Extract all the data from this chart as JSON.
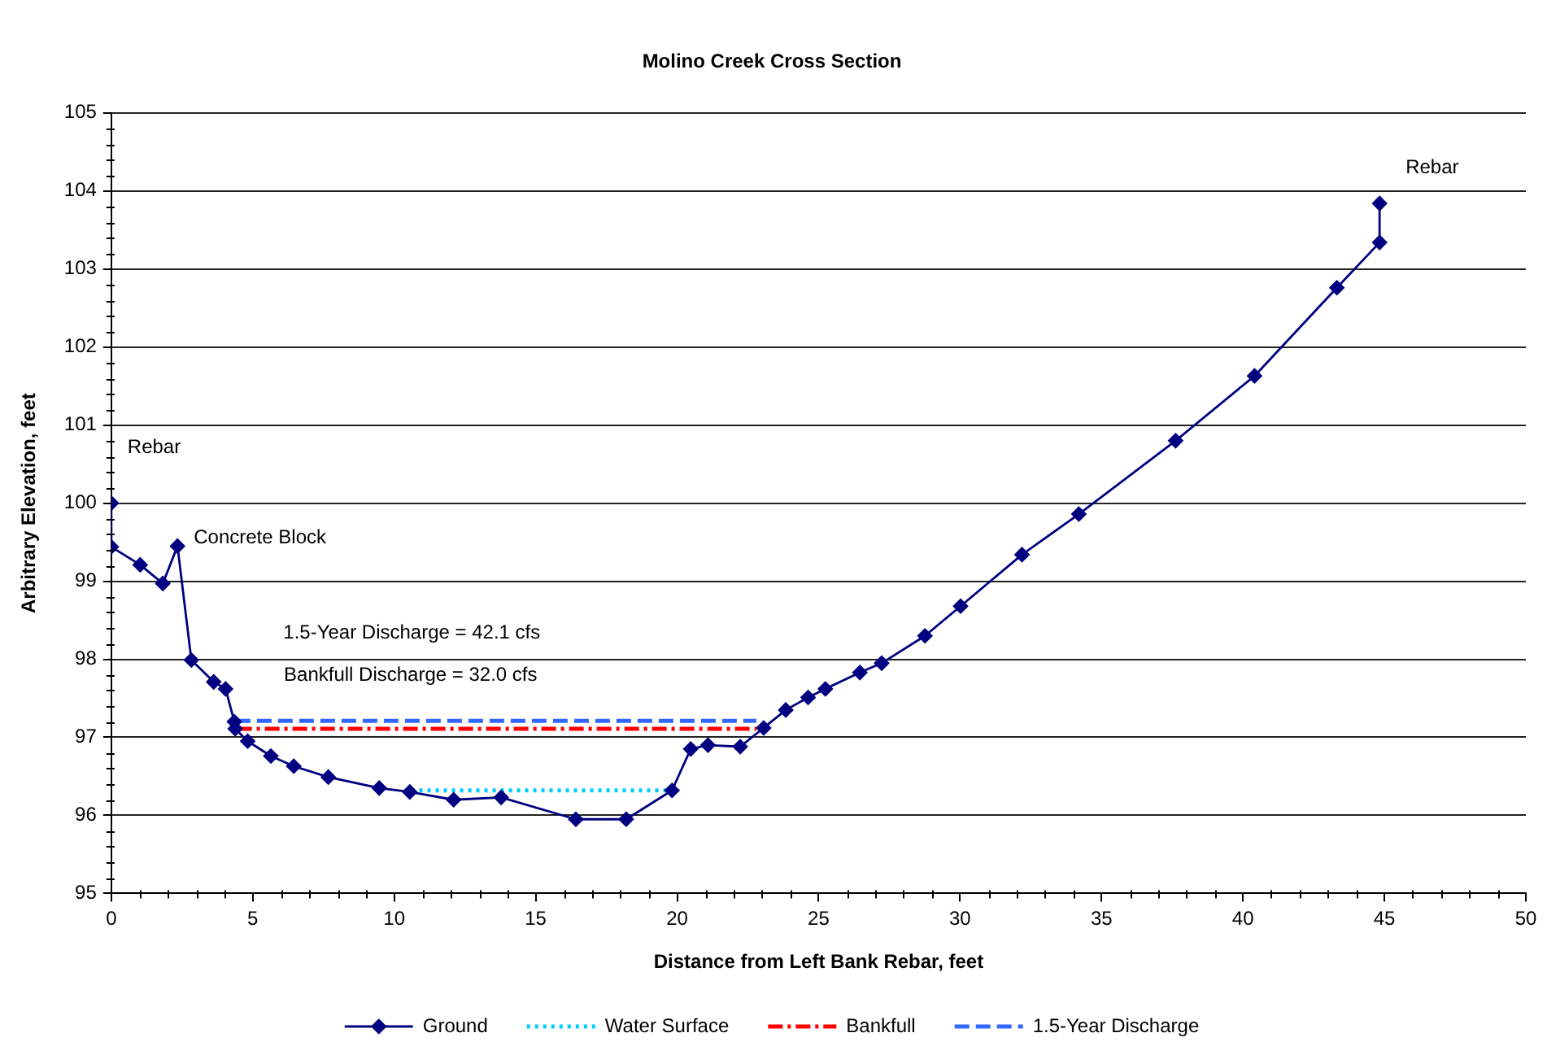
{
  "chart_data": {
    "type": "line",
    "title": "Molino Creek Cross Section",
    "xlabel": "Distance from Left Bank Rebar, feet",
    "ylabel": "Arbitrary Elevation, feet",
    "xlim": [
      0,
      50
    ],
    "xticks": [
      0,
      {
        "value": 1,
        "label": null
      },
      {
        "value": 2,
        "label": null
      },
      {
        "value": 3,
        "label": null
      },
      {
        "value": 4,
        "label": null
      },
      5,
      {
        "value": 6,
        "label": null
      },
      {
        "value": 7,
        "label": null
      },
      {
        "value": 8,
        "label": null
      },
      {
        "value": 9,
        "label": null
      },
      10,
      {
        "value": 11,
        "label": null
      },
      {
        "value": 12,
        "label": null
      },
      {
        "value": 13,
        "label": null
      },
      {
        "value": 14,
        "label": null
      },
      15,
      {
        "value": 16,
        "label": null
      },
      {
        "value": 17,
        "label": null
      },
      {
        "value": 18,
        "label": null
      },
      {
        "value": 19,
        "label": null
      },
      20,
      {
        "value": 21,
        "label": null
      },
      {
        "value": 22,
        "label": null
      },
      {
        "value": 23,
        "label": null
      },
      {
        "value": 24,
        "label": null
      },
      25,
      {
        "value": 26,
        "label": null
      },
      {
        "value": 27,
        "label": null
      },
      {
        "value": 28,
        "label": null
      },
      {
        "value": 29,
        "label": null
      },
      30,
      {
        "value": 31,
        "label": null
      },
      {
        "value": 32,
        "label": null
      },
      {
        "value": 33,
        "label": null
      },
      {
        "value": 34,
        "label": null
      },
      35,
      {
        "value": 36,
        "label": null
      },
      {
        "value": 37,
        "label": null
      },
      {
        "value": 38,
        "label": null
      },
      {
        "value": 39,
        "label": null
      },
      40,
      {
        "value": 41,
        "label": null
      },
      {
        "value": 42,
        "label": null
      },
      {
        "value": 43,
        "label": null
      },
      {
        "value": 44,
        "label": null
      },
      45,
      {
        "value": 46,
        "label": null
      },
      {
        "value": 47,
        "label": null
      },
      {
        "value": 48,
        "label": null
      },
      {
        "value": 49,
        "label": null
      },
      50
    ],
    "ylim": [
      95,
      105
    ],
    "yticks": [
      95,
      {
        "value": 95.2,
        "label": null
      },
      {
        "value": 95.4,
        "label": null
      },
      {
        "value": 95.6,
        "label": null
      },
      {
        "value": 95.8,
        "label": null
      },
      96,
      {
        "value": 96.2,
        "label": null
      },
      {
        "value": 96.4,
        "label": null
      },
      {
        "value": 96.6,
        "label": null
      },
      {
        "value": 96.8,
        "label": null
      },
      97,
      {
        "value": 97.2,
        "label": null
      },
      {
        "value": 97.4,
        "label": null
      },
      {
        "value": 97.6,
        "label": null
      },
      {
        "value": 97.8,
        "label": null
      },
      98,
      {
        "value": 98.2,
        "label": null
      },
      {
        "value": 98.4,
        "label": null
      },
      {
        "value": 98.6,
        "label": null
      },
      {
        "value": 98.8,
        "label": null
      },
      99,
      {
        "value": 99.2,
        "label": null
      },
      {
        "value": 99.4,
        "label": null
      },
      {
        "value": 99.6,
        "label": null
      },
      {
        "value": 99.8,
        "label": null
      },
      100,
      {
        "value": 100.2,
        "label": null
      },
      {
        "value": 100.4,
        "label": null
      },
      {
        "value": 100.6,
        "label": null
      },
      {
        "value": 100.8,
        "label": null
      },
      101,
      {
        "value": 101.2,
        "label": null
      },
      {
        "value": 101.4,
        "label": null
      },
      {
        "value": 101.6,
        "label": null
      },
      {
        "value": 101.8,
        "label": null
      },
      102,
      {
        "value": 102.2,
        "label": null
      },
      {
        "value": 102.4,
        "label": null
      },
      {
        "value": 102.6,
        "label": null
      },
      {
        "value": 102.8,
        "label": null
      },
      103,
      {
        "value": 103.2,
        "label": null
      },
      {
        "value": 103.4,
        "label": null
      },
      {
        "value": 103.6,
        "label": null
      },
      {
        "value": 103.8,
        "label": null
      },
      104,
      {
        "value": 104.2,
        "label": null
      },
      {
        "value": 104.4,
        "label": null
      },
      {
        "value": 104.6,
        "label": null
      },
      {
        "value": 104.8,
        "label": null
      },
      105
    ],
    "grid": "y",
    "legend": "bottom",
    "series": [
      {
        "name": "Ground",
        "color": "#000080",
        "marker": "diamond",
        "x": [
          0,
          0,
          1.02,
          1.82,
          2.34,
          2.83,
          3.62,
          4.04,
          4.35,
          4.38,
          4.82,
          5.64,
          6.45,
          7.67,
          9.47,
          10.55,
          12.1,
          13.78,
          16.42,
          18.2,
          19.82,
          20.48,
          21.09,
          22.23,
          23.06,
          23.84,
          24.63,
          25.24,
          26.46,
          27.23,
          28.76,
          30.02,
          32.19,
          34.2,
          37.62,
          40.41,
          43.32,
          44.83,
          44.83
        ],
        "values": [
          100.0,
          99.44,
          99.21,
          98.97,
          99.45,
          97.99,
          97.71,
          97.62,
          97.2,
          97.11,
          96.95,
          96.76,
          96.63,
          96.49,
          96.35,
          96.3,
          96.2,
          96.23,
          95.95,
          95.95,
          96.32,
          96.85,
          96.9,
          96.88,
          97.12,
          97.35,
          97.51,
          97.62,
          97.83,
          97.95,
          98.3,
          98.68,
          99.34,
          99.86,
          100.8,
          101.63,
          102.76,
          103.34,
          103.84
        ]
      },
      {
        "name": "Water Surface",
        "color": "#00ccff",
        "line_style": "dotted",
        "x": [
          10.6,
          19.8
        ],
        "values": [
          96.32,
          96.32
        ]
      },
      {
        "name": "Bankfull",
        "color": "#ff0000",
        "line_style": "dashdot",
        "x": [
          4.45,
          22.8
        ],
        "values": [
          97.11,
          97.11
        ]
      },
      {
        "name": "1.5-Year Discharge",
        "color": "#3366ff",
        "line_style": "dashed",
        "x": [
          4.4,
          22.8
        ],
        "values": [
          97.21,
          97.21
        ]
      }
    ],
    "annotations": [
      {
        "text": "Rebar",
        "x": 0,
        "y": 100.0
      },
      {
        "text": "Concrete Block",
        "x": 2.34,
        "y": 99.45
      },
      "1.5-Year Discharge = 42.1 cfs",
      {
        "text": "Bankfull Discharge = 32.0 cfs",
        "x": 6.1,
        "y": 97.11
      },
      {
        "text": "Rebar",
        "x": 44.83,
        "y": 103.84
      }
    ]
  }
}
